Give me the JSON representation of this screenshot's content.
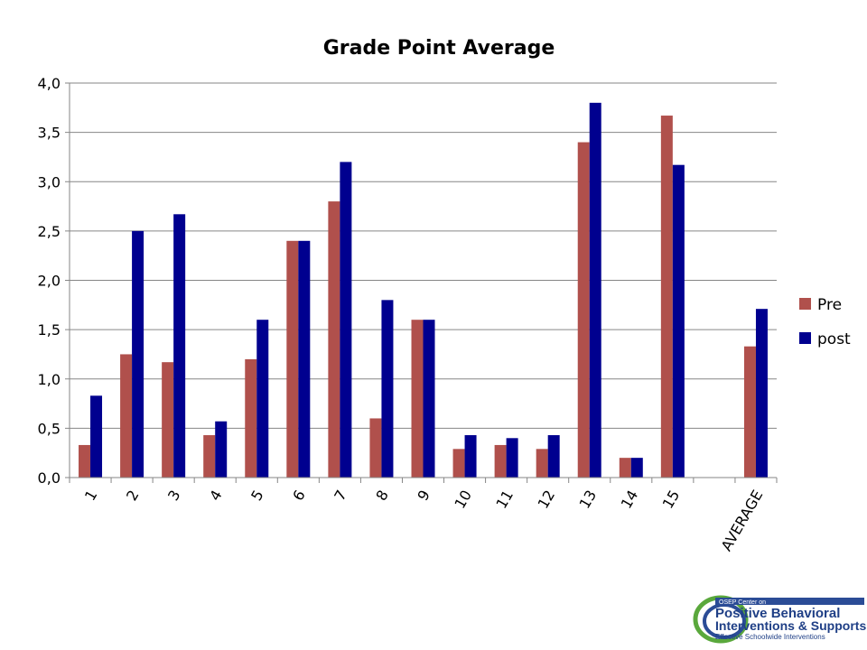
{
  "chart_data": {
    "type": "bar",
    "title": "Grade Point Average",
    "categories": [
      "1",
      "2",
      "3",
      "4",
      "5",
      "6",
      "7",
      "8",
      "9",
      "10",
      "11",
      "12",
      "13",
      "14",
      "15",
      "",
      "AVERAGE"
    ],
    "series": [
      {
        "name": "Pre",
        "color": "#B0504C",
        "values": [
          0.33,
          1.25,
          1.17,
          0.43,
          1.2,
          2.4,
          2.8,
          0.6,
          1.6,
          0.29,
          0.33,
          0.29,
          3.4,
          0.2,
          3.67,
          null,
          1.33
        ]
      },
      {
        "name": "post",
        "color": "#00008F",
        "values": [
          0.83,
          2.5,
          2.67,
          0.57,
          1.6,
          2.4,
          3.2,
          1.8,
          1.6,
          0.43,
          0.4,
          0.43,
          3.8,
          0.2,
          3.17,
          null,
          1.71
        ]
      }
    ],
    "ylim": [
      0,
      4
    ],
    "yticks": [
      "0,0",
      "0,5",
      "1,0",
      "1,5",
      "2,0",
      "2,5",
      "3,0",
      "3,5",
      "4,0"
    ],
    "ytick_values": [
      0,
      0.5,
      1,
      1.5,
      2,
      2.5,
      3,
      3.5,
      4
    ],
    "grid": true,
    "legend_position": "right"
  },
  "logo": {
    "line1": "OSEP Center on",
    "line2": "Positive Behavioral",
    "line3": "Interventions & Supports",
    "line4": "Effective Schoolwide Interventions"
  }
}
